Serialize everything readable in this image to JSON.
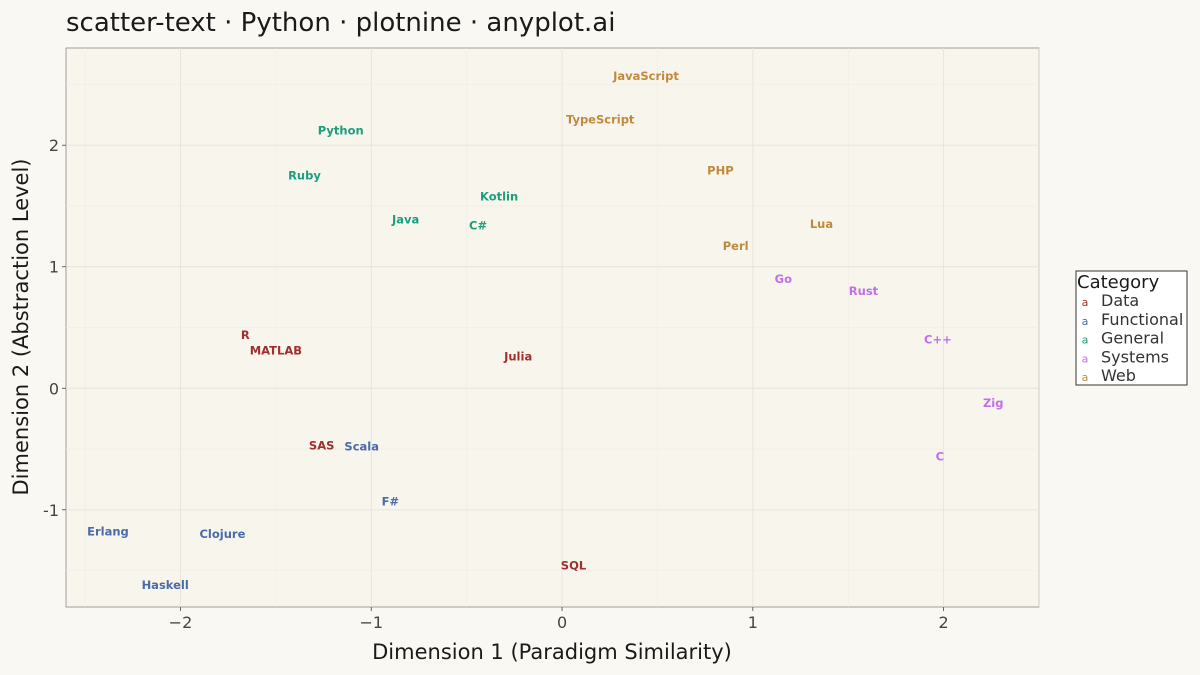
{
  "chart_data": {
    "type": "scatter",
    "title": "scatter-text · Python · plotnine · anyplot.ai",
    "xlabel": "Dimension 1 (Paradigm Similarity)",
    "ylabel": "Dimension 2 (Abstraction Level)",
    "xlim": [
      -2.6,
      2.5
    ],
    "ylim": [
      -1.8,
      2.8
    ],
    "xticks": [
      -2,
      -1,
      0,
      1,
      2
    ],
    "yticks": [
      -1,
      0,
      1,
      2
    ],
    "xtick_labels": [
      "−2",
      "−1",
      "0",
      "1",
      "2"
    ],
    "ytick_labels": [
      "-1",
      "0",
      "1",
      "2"
    ],
    "grid": true,
    "legend_position": "right",
    "legend_title": "Category",
    "legend_key_glyph": "a",
    "categories": [
      {
        "name": "Data",
        "color": "#A0302E"
      },
      {
        "name": "Functional",
        "color": "#4A6BAA"
      },
      {
        "name": "General",
        "color": "#1C9E7F"
      },
      {
        "name": "Systems",
        "color": "#C26FEA"
      },
      {
        "name": "Web",
        "color": "#C08A3E"
      }
    ],
    "points": [
      {
        "label": "JavaScript",
        "x": 0.44,
        "y": 2.57,
        "category": "Web"
      },
      {
        "label": "TypeScript",
        "x": 0.2,
        "y": 2.21,
        "category": "Web"
      },
      {
        "label": "PHP",
        "x": 0.83,
        "y": 1.79,
        "category": "Web"
      },
      {
        "label": "Lua",
        "x": 1.36,
        "y": 1.35,
        "category": "Web"
      },
      {
        "label": "Perl",
        "x": 0.91,
        "y": 1.17,
        "category": "Web"
      },
      {
        "label": "Python",
        "x": -1.16,
        "y": 2.12,
        "category": "General"
      },
      {
        "label": "Ruby",
        "x": -1.35,
        "y": 1.75,
        "category": "General"
      },
      {
        "label": "Kotlin",
        "x": -0.33,
        "y": 1.58,
        "category": "General"
      },
      {
        "label": "Java",
        "x": -0.82,
        "y": 1.39,
        "category": "General"
      },
      {
        "label": "C#",
        "x": -0.44,
        "y": 1.34,
        "category": "General"
      },
      {
        "label": "Go",
        "x": 1.16,
        "y": 0.9,
        "category": "Systems"
      },
      {
        "label": "Rust",
        "x": 1.58,
        "y": 0.8,
        "category": "Systems"
      },
      {
        "label": "C++",
        "x": 1.97,
        "y": 0.4,
        "category": "Systems"
      },
      {
        "label": "Zig",
        "x": 2.26,
        "y": -0.12,
        "category": "Systems"
      },
      {
        "label": "C",
        "x": 1.98,
        "y": -0.56,
        "category": "Systems"
      },
      {
        "label": "R",
        "x": -1.66,
        "y": 0.44,
        "category": "Data"
      },
      {
        "label": "MATLAB",
        "x": -1.5,
        "y": 0.31,
        "category": "Data"
      },
      {
        "label": "Julia",
        "x": -0.23,
        "y": 0.26,
        "category": "Data"
      },
      {
        "label": "SAS",
        "x": -1.26,
        "y": -0.47,
        "category": "Data"
      },
      {
        "label": "SQL",
        "x": 0.06,
        "y": -1.46,
        "category": "Data"
      },
      {
        "label": "Scala",
        "x": -1.05,
        "y": -0.48,
        "category": "Functional"
      },
      {
        "label": "F#",
        "x": -0.9,
        "y": -0.93,
        "category": "Functional"
      },
      {
        "label": "Erlang",
        "x": -2.38,
        "y": -1.18,
        "category": "Functional"
      },
      {
        "label": "Clojure",
        "x": -1.78,
        "y": -1.2,
        "category": "Functional"
      },
      {
        "label": "Haskell",
        "x": -2.08,
        "y": -1.62,
        "category": "Functional"
      }
    ]
  }
}
